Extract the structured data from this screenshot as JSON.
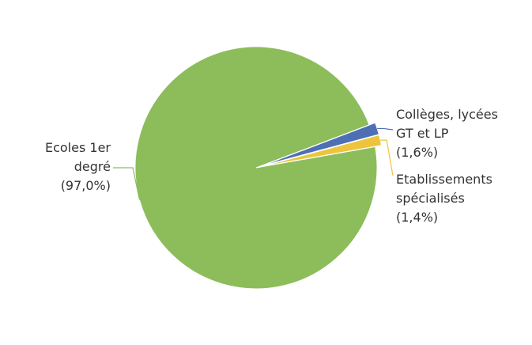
{
  "chart_data": {
    "type": "pie",
    "title": "",
    "start_angle_deg": -10,
    "slices": [
      {
        "name": "Ecoles 1er degré",
        "value": 97.0,
        "label_lines": [
          "Ecoles 1er",
          "degré",
          "(97,0%)"
        ],
        "color": "#8cbd5a",
        "label_side": "left"
      },
      {
        "name": "Collèges, lycées GT et LP",
        "value": 1.6,
        "label_lines": [
          "Collèges, lycées",
          "GT et LP",
          "(1,6%)"
        ],
        "color": "#4f6fb5",
        "label_side": "right"
      },
      {
        "name": "Etablissements spécialisés",
        "value": 1.4,
        "label_lines": [
          "Etablissements",
          "spécialisés",
          "(1,4%)"
        ],
        "color": "#ecc53d",
        "label_side": "right"
      }
    ]
  }
}
